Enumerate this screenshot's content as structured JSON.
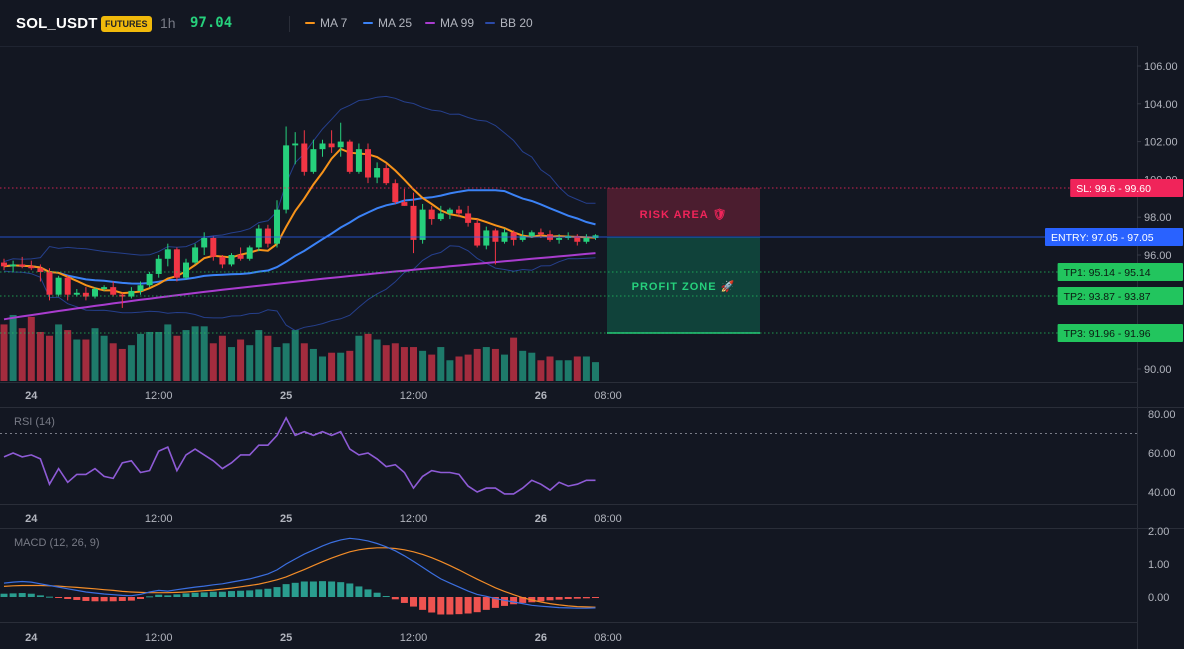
{
  "header": {
    "symbol": "SOL_USDT",
    "badge": "FUTURES",
    "interval": "1h",
    "price": "97.04"
  },
  "indicators": [
    {
      "name": "MA 7",
      "color": "#f7931a"
    },
    {
      "name": "MA 25",
      "color": "#3b82f6"
    },
    {
      "name": "MA 99",
      "color": "#a93ccf"
    },
    {
      "name": "BB 20",
      "color": "#2b4aa8"
    }
  ],
  "colors": {
    "up": "#26d07c",
    "down": "#f23645",
    "vol_up": "#1e7a6a",
    "vol_down": "#a32c3e"
  },
  "main_axis": {
    "ticks": [
      "106.00",
      "104.00",
      "102.00",
      "100.00",
      "98.00",
      "96.00",
      "90.00"
    ],
    "tick_values": [
      106,
      104,
      102,
      100,
      98,
      96,
      90
    ]
  },
  "time_axis": {
    "labels": [
      "24",
      "12:00",
      "25",
      "12:00",
      "26",
      "08:00"
    ]
  },
  "levels": {
    "sl": {
      "label": "SL: 99.6",
      "value_text": "99.60",
      "value": 99.6,
      "color": "#f0245a"
    },
    "entry": {
      "label": "ENTRY: 97.05",
      "value_text": "97.05",
      "value": 97.05,
      "color": "#2962ff"
    },
    "tp1": {
      "label": "TP1: 95.14",
      "value_text": "95.14",
      "value": 95.14,
      "color": "#22c55e"
    },
    "tp2": {
      "label": "TP2: 93.87",
      "value_text": "93.87",
      "value": 93.87,
      "color": "#22c55e"
    },
    "tp3": {
      "label": "TP3: 91.96",
      "value_text": "91.96",
      "value": 91.96,
      "color": "#22c55e"
    }
  },
  "zones": {
    "risk_label": "RISK AREA 🛡",
    "profit_label": "PROFIT ZONE 🚀"
  },
  "rsi": {
    "title": "RSI (14)",
    "ticks": [
      "80.00",
      "60.00",
      "40.00"
    ],
    "tick_values": [
      80,
      60,
      40
    ],
    "overbought": 70,
    "values": [
      58,
      60,
      58,
      59,
      57,
      44,
      52,
      45,
      49,
      49,
      52,
      48,
      47,
      55,
      56,
      50,
      51,
      61,
      63,
      51,
      59,
      62,
      59,
      56,
      52,
      55,
      59,
      59,
      64,
      64,
      69,
      78,
      69,
      71,
      69,
      71,
      69,
      71,
      62,
      59,
      60,
      57,
      53,
      54,
      50,
      42,
      48,
      51,
      50,
      50,
      49,
      43,
      40,
      42,
      42,
      39,
      39,
      42,
      46,
      44,
      41,
      45,
      43,
      44,
      46,
      46
    ]
  },
  "macd": {
    "title": "MACD (12, 26, 9)",
    "ticks": [
      "2.00",
      "1.00",
      "0.00"
    ],
    "tick_values": [
      2,
      1,
      0
    ],
    "macd_line": [
      0.42,
      0.45,
      0.47,
      0.45,
      0.4,
      0.35,
      0.3,
      0.25,
      0.2,
      0.15,
      0.12,
      0.09,
      0.07,
      0.05,
      0.04,
      0.08,
      0.15,
      0.2,
      0.18,
      0.22,
      0.26,
      0.3,
      0.33,
      0.37,
      0.4,
      0.45,
      0.5,
      0.55,
      0.62,
      0.7,
      0.82,
      1.0,
      1.15,
      1.3,
      1.42,
      1.55,
      1.65,
      1.73,
      1.78,
      1.75,
      1.7,
      1.62,
      1.52,
      1.4,
      1.25,
      1.08,
      0.9,
      0.72,
      0.55,
      0.42,
      0.3,
      0.18,
      0.08,
      0.02,
      -0.05,
      -0.1,
      -0.15,
      -0.2,
      -0.25,
      -0.28,
      -0.3,
      -0.32,
      -0.33,
      -0.34,
      -0.34,
      -0.33
    ],
    "signal_line": [
      0.32,
      0.34,
      0.35,
      0.35,
      0.35,
      0.34,
      0.33,
      0.31,
      0.29,
      0.27,
      0.25,
      0.22,
      0.2,
      0.17,
      0.15,
      0.14,
      0.13,
      0.13,
      0.13,
      0.14,
      0.15,
      0.17,
      0.19,
      0.21,
      0.24,
      0.27,
      0.31,
      0.35,
      0.39,
      0.45,
      0.52,
      0.61,
      0.72,
      0.83,
      0.95,
      1.07,
      1.18,
      1.28,
      1.37,
      1.43,
      1.47,
      1.49,
      1.49,
      1.47,
      1.43,
      1.37,
      1.29,
      1.19,
      1.08,
      0.95,
      0.82,
      0.68,
      0.54,
      0.41,
      0.28,
      0.17,
      0.07,
      -0.02,
      -0.09,
      -0.15,
      -0.2,
      -0.24,
      -0.27,
      -0.29,
      -0.3,
      -0.31
    ],
    "histogram": [
      0.1,
      0.11,
      0.12,
      0.1,
      0.05,
      0.01,
      -0.03,
      -0.06,
      -0.09,
      -0.12,
      -0.13,
      -0.13,
      -0.13,
      -0.12,
      -0.11,
      -0.06,
      0.02,
      0.07,
      0.05,
      0.08,
      0.11,
      0.13,
      0.14,
      0.16,
      0.16,
      0.18,
      0.19,
      0.2,
      0.23,
      0.25,
      0.3,
      0.39,
      0.43,
      0.47,
      0.47,
      0.48,
      0.47,
      0.45,
      0.41,
      0.32,
      0.23,
      0.13,
      0.03,
      -0.07,
      -0.18,
      -0.29,
      -0.39,
      -0.47,
      -0.53,
      -0.53,
      -0.52,
      -0.5,
      -0.46,
      -0.39,
      -0.33,
      -0.27,
      -0.22,
      -0.18,
      -0.16,
      -0.13,
      -0.1,
      -0.08,
      -0.06,
      -0.05,
      -0.04,
      -0.02
    ]
  },
  "chart_data": {
    "type": "candlestick",
    "categories": [
      "24",
      "12:00",
      "25",
      "12:00",
      "26",
      "08:00"
    ],
    "ohlc": [
      [
        95.6,
        95.8,
        95.2,
        95.4
      ],
      [
        95.4,
        95.7,
        95.1,
        95.5
      ],
      [
        95.5,
        95.9,
        95.3,
        95.4
      ],
      [
        95.4,
        95.7,
        95.2,
        95.3
      ],
      [
        95.3,
        95.5,
        94.6,
        95.1
      ],
      [
        95.1,
        95.3,
        93.6,
        93.9
      ],
      [
        93.9,
        94.9,
        93.8,
        94.8
      ],
      [
        94.8,
        94.9,
        93.6,
        93.9
      ],
      [
        93.9,
        94.2,
        93.8,
        94.0
      ],
      [
        94.0,
        94.3,
        93.6,
        93.8
      ],
      [
        93.8,
        94.3,
        93.7,
        94.2
      ],
      [
        94.2,
        94.4,
        94.1,
        94.3
      ],
      [
        94.3,
        94.6,
        93.8,
        93.9
      ],
      [
        93.9,
        94.0,
        93.2,
        93.8
      ],
      [
        93.8,
        94.3,
        93.7,
        94.1
      ],
      [
        94.1,
        94.6,
        93.9,
        94.4
      ],
      [
        94.4,
        95.1,
        94.3,
        95.0
      ],
      [
        95.0,
        96.0,
        94.8,
        95.8
      ],
      [
        95.8,
        96.6,
        95.4,
        96.3
      ],
      [
        96.3,
        96.4,
        94.6,
        94.8
      ],
      [
        94.8,
        95.8,
        94.7,
        95.6
      ],
      [
        95.6,
        96.6,
        95.5,
        96.4
      ],
      [
        96.4,
        97.2,
        96.0,
        96.9
      ],
      [
        96.9,
        97.0,
        95.7,
        95.9
      ],
      [
        95.9,
        96.0,
        95.3,
        95.5
      ],
      [
        95.5,
        96.1,
        95.4,
        96.0
      ],
      [
        96.0,
        96.4,
        95.7,
        95.8
      ],
      [
        95.8,
        96.5,
        95.7,
        96.4
      ],
      [
        96.4,
        97.6,
        96.2,
        97.4
      ],
      [
        97.4,
        97.6,
        96.4,
        96.6
      ],
      [
        96.6,
        98.9,
        96.4,
        98.4
      ],
      [
        98.4,
        102.8,
        98.2,
        101.8
      ],
      [
        101.8,
        102.5,
        100.8,
        101.9
      ],
      [
        101.9,
        102.6,
        100.2,
        100.4
      ],
      [
        100.4,
        102.1,
        100.3,
        101.6
      ],
      [
        101.6,
        102.1,
        101.2,
        101.9
      ],
      [
        101.9,
        102.6,
        101.4,
        101.7
      ],
      [
        101.7,
        103.0,
        101.2,
        102.0
      ],
      [
        102.0,
        102.1,
        100.3,
        100.4
      ],
      [
        100.4,
        101.9,
        100.3,
        101.6
      ],
      [
        101.6,
        101.9,
        99.8,
        100.1
      ],
      [
        100.1,
        100.9,
        99.8,
        100.6
      ],
      [
        100.6,
        100.8,
        99.7,
        99.8
      ],
      [
        99.8,
        100.0,
        98.7,
        98.8
      ],
      [
        98.8,
        99.5,
        98.6,
        98.6
      ],
      [
        98.6,
        99.3,
        96.1,
        96.8
      ],
      [
        96.8,
        98.7,
        96.6,
        98.4
      ],
      [
        98.4,
        98.6,
        97.6,
        97.9
      ],
      [
        97.9,
        98.6,
        97.8,
        98.2
      ],
      [
        98.2,
        98.5,
        97.9,
        98.4
      ],
      [
        98.4,
        98.6,
        98.0,
        98.2
      ],
      [
        98.2,
        98.6,
        97.5,
        97.7
      ],
      [
        97.7,
        97.9,
        96.4,
        96.5
      ],
      [
        96.5,
        97.5,
        96.3,
        97.3
      ],
      [
        97.3,
        97.4,
        95.5,
        96.7
      ],
      [
        96.7,
        97.4,
        96.6,
        97.2
      ],
      [
        97.2,
        97.3,
        96.5,
        96.8
      ],
      [
        96.8,
        97.3,
        96.7,
        97.0
      ],
      [
        97.0,
        97.3,
        96.9,
        97.2
      ],
      [
        97.2,
        97.4,
        96.9,
        97.1
      ],
      [
        97.1,
        97.3,
        96.7,
        96.8
      ],
      [
        96.8,
        97.1,
        96.6,
        96.9
      ],
      [
        96.9,
        97.2,
        96.8,
        97.0
      ],
      [
        97.0,
        97.1,
        96.5,
        96.7
      ],
      [
        96.7,
        97.1,
        96.6,
        96.9
      ],
      [
        96.9,
        97.1,
        96.8,
        97.04
      ]
    ],
    "volume": [
      30,
      35,
      28,
      34,
      26,
      24,
      30,
      27,
      22,
      22,
      28,
      24,
      20,
      17,
      19,
      25,
      26,
      26,
      30,
      24,
      27,
      29,
      29,
      20,
      24,
      18,
      22,
      19,
      27,
      24,
      18,
      20,
      27,
      20,
      17,
      13,
      15,
      15,
      16,
      24,
      25,
      22,
      19,
      20,
      18,
      18,
      16,
      14,
      18,
      11,
      13,
      14,
      17,
      18,
      17,
      14,
      23,
      16,
      15,
      11,
      13,
      11,
      11,
      13,
      13,
      10
    ]
  }
}
